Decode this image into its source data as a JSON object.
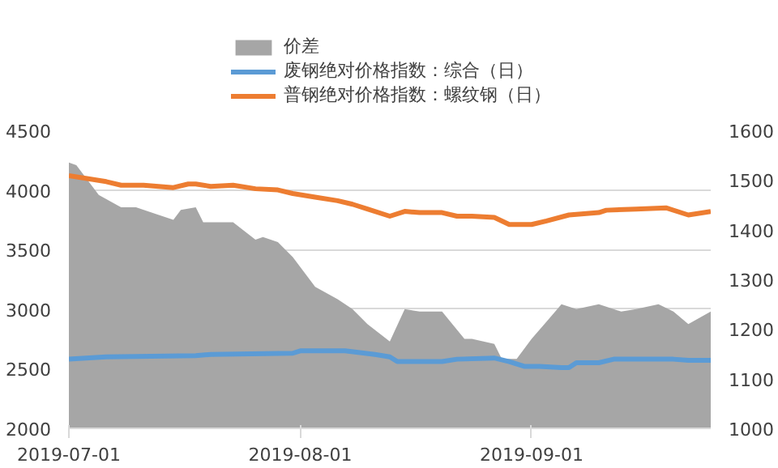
{
  "chart_data": {
    "type": "line",
    "series": [
      {
        "name": "价差",
        "type": "area",
        "axis": "y2",
        "color": "#a6a6a6",
        "x": [
          "2019-07-01",
          "2019-07-02",
          "2019-07-05",
          "2019-07-08",
          "2019-07-10",
          "2019-07-12",
          "2019-07-15",
          "2019-07-16",
          "2019-07-18",
          "2019-07-19",
          "2019-07-23",
          "2019-07-26",
          "2019-07-27",
          "2019-07-29",
          "2019-07-31",
          "2019-08-01",
          "2019-08-03",
          "2019-08-06",
          "2019-08-08",
          "2019-08-10",
          "2019-08-13",
          "2019-08-15",
          "2019-08-17",
          "2019-08-20",
          "2019-08-23",
          "2019-08-24",
          "2019-08-27",
          "2019-08-28",
          "2019-08-30",
          "2019-09-01",
          "2019-09-03",
          "2019-09-05",
          "2019-09-07",
          "2019-09-10",
          "2019-09-13",
          "2019-09-15",
          "2019-09-18",
          "2019-09-20",
          "2019-09-22",
          "2019-09-25"
        ],
        "values": [
          1535,
          1530,
          1470,
          1445,
          1445,
          1435,
          1420,
          1440,
          1445,
          1415,
          1415,
          1380,
          1385,
          1375,
          1345,
          1325,
          1285,
          1260,
          1240,
          1210,
          1175,
          1240,
          1235,
          1235,
          1180,
          1180,
          1170,
          1140,
          1140,
          1180,
          1215,
          1250,
          1240,
          1250,
          1235,
          1240,
          1250,
          1235,
          1210,
          1235
        ]
      },
      {
        "name": "废钢绝对价格指数：综合（日）",
        "color": "#5b9bd5",
        "x": [
          "2019-07-01",
          "2019-07-06",
          "2019-07-18",
          "2019-07-20",
          "2019-07-31",
          "2019-08-01",
          "2019-08-07",
          "2019-08-11",
          "2019-08-13",
          "2019-08-14",
          "2019-08-20",
          "2019-08-22",
          "2019-08-27",
          "2019-08-29",
          "2019-08-31",
          "2019-09-02",
          "2019-09-05",
          "2019-09-06",
          "2019-09-07",
          "2019-09-10",
          "2019-09-12",
          "2019-09-20",
          "2019-09-22",
          "2019-09-25"
        ],
        "values": [
          2580,
          2600,
          2610,
          2620,
          2630,
          2650,
          2650,
          2620,
          2600,
          2560,
          2560,
          2580,
          2590,
          2560,
          2520,
          2520,
          2510,
          2510,
          2550,
          2550,
          2580,
          2580,
          2570,
          2570
        ]
      },
      {
        "name": "普钢绝对价格指数：螺纹钢（日）",
        "color": "#ed7d31",
        "x": [
          "2019-07-01",
          "2019-07-06",
          "2019-07-08",
          "2019-07-11",
          "2019-07-15",
          "2019-07-17",
          "2019-07-18",
          "2019-07-20",
          "2019-07-23",
          "2019-07-26",
          "2019-07-29",
          "2019-07-31",
          "2019-08-03",
          "2019-08-06",
          "2019-08-08",
          "2019-08-10",
          "2019-08-13",
          "2019-08-15",
          "2019-08-17",
          "2019-08-20",
          "2019-08-22",
          "2019-08-24",
          "2019-08-27",
          "2019-08-29",
          "2019-09-01",
          "2019-09-03",
          "2019-09-06",
          "2019-09-10",
          "2019-09-11",
          "2019-09-15",
          "2019-09-19",
          "2019-09-22",
          "2019-09-25"
        ],
        "values": [
          4120,
          4070,
          4040,
          4040,
          4020,
          4050,
          4050,
          4030,
          4040,
          4010,
          4000,
          3970,
          3940,
          3910,
          3880,
          3840,
          3780,
          3820,
          3810,
          3810,
          3780,
          3780,
          3770,
          3710,
          3710,
          3740,
          3790,
          3810,
          3830,
          3840,
          3850,
          3790,
          3820
        ]
      }
    ],
    "xlim": [
      "2019-07-01",
      "2019-09-25"
    ],
    "xticks": [
      {
        "value": "2019-07-01",
        "label": "2019-07-01"
      },
      {
        "value": "2019-08-01",
        "label": "2019-08-01"
      },
      {
        "value": "2019-09-01",
        "label": "2019-09-01"
      }
    ],
    "ylim": [
      2000,
      4500
    ],
    "yticks": [
      2000,
      2500,
      3000,
      3500,
      4000,
      4500
    ],
    "y2lim": [
      1000,
      1600
    ],
    "y2ticks": [
      1000,
      1100,
      1200,
      1300,
      1400,
      1500,
      1600
    ],
    "grid": "y",
    "legend": "top"
  }
}
